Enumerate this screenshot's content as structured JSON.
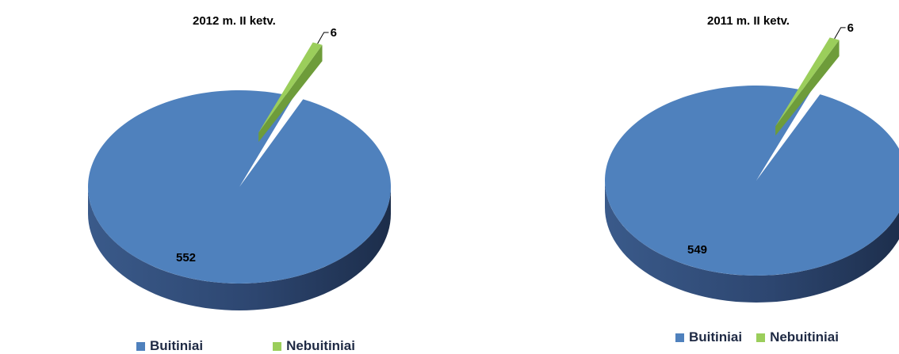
{
  "colors": {
    "buitiniai": "#4f81bd",
    "buitiniai_side": "#2f4a73",
    "nebuitiniai": "#9bce5b",
    "nebuitiniai_side": "#6e9c3a"
  },
  "chart_data": [
    {
      "type": "pie",
      "title": "2012 m. II ketv.",
      "categories": [
        "Buitiniai",
        "Nebuitiniai"
      ],
      "values": [
        552,
        6
      ],
      "data_labels": [
        "552",
        "6"
      ],
      "legend_position": "bottom",
      "style": "3d-exploded"
    },
    {
      "type": "pie",
      "title": "2011 m. II ketv.",
      "categories": [
        "Buitiniai",
        "Nebuitiniai"
      ],
      "values": [
        549,
        6
      ],
      "data_labels": [
        "549",
        "6"
      ],
      "legend_position": "bottom",
      "style": "3d-exploded"
    }
  ]
}
